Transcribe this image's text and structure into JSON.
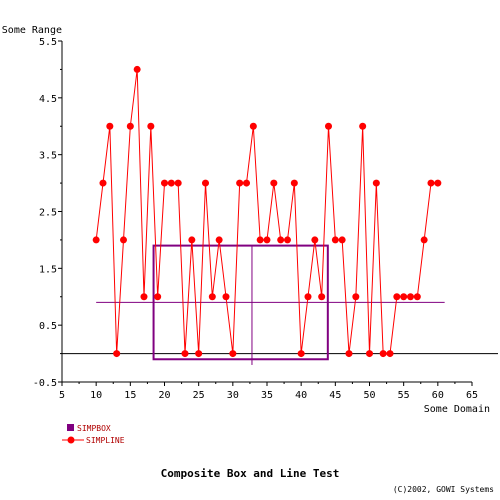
{
  "chart_data": {
    "type": "line",
    "title": "Composite Box and Line Test",
    "copyright": "(C)2002, GOWI Systems",
    "xlabel": "Some Domain",
    "ylabel": "Some Range",
    "xlim": [
      5,
      65
    ],
    "ylim": [
      -0.5,
      5.5
    ],
    "xticks": [
      5,
      10,
      15,
      20,
      25,
      30,
      35,
      40,
      45,
      50,
      55,
      60,
      65
    ],
    "yticks": [
      -0.5,
      0.5,
      1.5,
      2.5,
      3.5,
      4.5,
      5.5
    ],
    "ytick_labels": [
      "-0.5",
      "0.5",
      "1.5",
      "2.5",
      "3.5",
      "4.5",
      "5.5"
    ],
    "grid": false,
    "legend_position": "bottom-left",
    "colors": {
      "line": "#ff0000",
      "box": "#800080",
      "legend_text": "#b00000",
      "axis": "#000000"
    },
    "series": [
      {
        "name": "SIMPBOX",
        "kind": "box",
        "x_min": 18.4,
        "x_max": 43.9,
        "q1": -0.1,
        "q3": 1.9,
        "median": 0.9,
        "median_x_min": 10,
        "median_x_max": 61,
        "center_x": 32.8,
        "whisker_low": -0.2,
        "whisker_high": 1.9,
        "baseline": 0
      },
      {
        "name": "SIMPLINE",
        "kind": "line",
        "x": [
          10,
          11,
          12,
          13,
          14,
          15,
          16,
          17,
          18,
          19,
          20,
          21,
          22,
          23,
          24,
          25,
          26,
          27,
          28,
          29,
          30,
          31,
          32,
          33,
          34,
          35,
          36,
          37,
          38,
          39,
          40,
          41,
          42,
          43,
          44,
          45,
          46,
          47,
          48,
          49,
          50,
          51,
          52,
          53,
          54,
          55,
          56,
          57,
          58,
          59,
          60
        ],
        "y": [
          2,
          3,
          4,
          0,
          2,
          4,
          5,
          1,
          4,
          1,
          3,
          3,
          3,
          0,
          2,
          0,
          3,
          1,
          2,
          1,
          0,
          3,
          3,
          4,
          2,
          2,
          3,
          2,
          2,
          3,
          0,
          1,
          2,
          1,
          4,
          2,
          2,
          0,
          1,
          4,
          0,
          3,
          0,
          0,
          1,
          1,
          1,
          1,
          2,
          3,
          3
        ]
      }
    ]
  }
}
